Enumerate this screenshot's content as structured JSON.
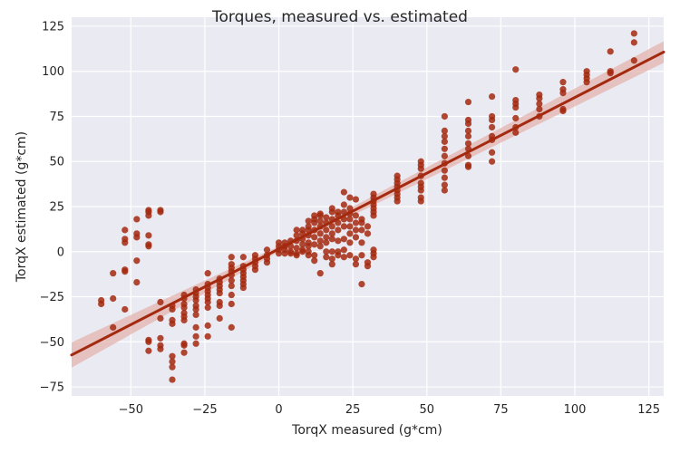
{
  "chart_data": {
    "type": "scatter",
    "title": "Torques, measured vs. estimated",
    "xlabel": "TorqX measured (g*cm)",
    "ylabel": "TorqX estimated (g*cm)",
    "xlim": [
      -70,
      130
    ],
    "ylim": [
      -80,
      130
    ],
    "x_ticks": [
      -50,
      -25,
      0,
      25,
      50,
      75,
      100,
      125
    ],
    "y_ticks": [
      -75,
      -50,
      -25,
      0,
      25,
      50,
      75,
      100,
      125
    ],
    "grid": true,
    "point_color": "#a3290f",
    "line_color": "#a3290f",
    "band_color": "#e3b4ad",
    "background": "#eaeaf2",
    "regression": {
      "slope": 0.84,
      "intercept": 1.5,
      "band": [
        [
          -70,
          7
        ],
        [
          0,
          1.5
        ],
        [
          130,
          6
        ]
      ]
    },
    "points": [
      [
        -60,
        -27
      ],
      [
        -60,
        -29
      ],
      [
        -56,
        -12
      ],
      [
        -56,
        -26
      ],
      [
        -56,
        -42
      ],
      [
        -52,
        12
      ],
      [
        -52,
        7
      ],
      [
        -52,
        5
      ],
      [
        -52,
        -10
      ],
      [
        -52,
        -11
      ],
      [
        -52,
        -32
      ],
      [
        -48,
        18
      ],
      [
        -48,
        10
      ],
      [
        -48,
        8
      ],
      [
        -48,
        -5
      ],
      [
        -48,
        -17
      ],
      [
        -44,
        23
      ],
      [
        -44,
        22
      ],
      [
        -44,
        20
      ],
      [
        -44,
        9
      ],
      [
        -44,
        4
      ],
      [
        -44,
        3
      ],
      [
        -44,
        -49
      ],
      [
        -44,
        -50
      ],
      [
        -44,
        -55
      ],
      [
        -40,
        23
      ],
      [
        -40,
        22
      ],
      [
        -40,
        -28
      ],
      [
        -40,
        -37
      ],
      [
        -40,
        -48
      ],
      [
        -40,
        -52
      ],
      [
        -40,
        -54
      ],
      [
        -36,
        -30
      ],
      [
        -36,
        -32
      ],
      [
        -36,
        -38
      ],
      [
        -36,
        -40
      ],
      [
        -36,
        -58
      ],
      [
        -36,
        -61
      ],
      [
        -36,
        -64
      ],
      [
        -36,
        -71
      ],
      [
        -32,
        -24
      ],
      [
        -32,
        -26
      ],
      [
        -32,
        -29
      ],
      [
        -32,
        -31
      ],
      [
        -32,
        -34
      ],
      [
        -32,
        -36
      ],
      [
        -32,
        -38
      ],
      [
        -32,
        -51
      ],
      [
        -32,
        -52
      ],
      [
        -32,
        -56
      ],
      [
        -28,
        -21
      ],
      [
        -28,
        -23
      ],
      [
        -28,
        -25
      ],
      [
        -28,
        -27
      ],
      [
        -28,
        -30
      ],
      [
        -28,
        -32
      ],
      [
        -28,
        -35
      ],
      [
        -28,
        -42
      ],
      [
        -28,
        -47
      ],
      [
        -28,
        -51
      ],
      [
        -24,
        -12
      ],
      [
        -24,
        -18
      ],
      [
        -24,
        -20
      ],
      [
        -24,
        -22
      ],
      [
        -24,
        -24
      ],
      [
        -24,
        -26
      ],
      [
        -24,
        -28
      ],
      [
        -24,
        -31
      ],
      [
        -24,
        -41
      ],
      [
        -24,
        -47
      ],
      [
        -20,
        -15
      ],
      [
        -20,
        -17
      ],
      [
        -20,
        -19
      ],
      [
        -20,
        -21
      ],
      [
        -20,
        -23
      ],
      [
        -20,
        -28
      ],
      [
        -20,
        -30
      ],
      [
        -20,
        -37
      ],
      [
        -16,
        -3
      ],
      [
        -16,
        -7
      ],
      [
        -16,
        -9
      ],
      [
        -16,
        -11
      ],
      [
        -16,
        -13
      ],
      [
        -16,
        -16
      ],
      [
        -16,
        -19
      ],
      [
        -16,
        -24
      ],
      [
        -16,
        -29
      ],
      [
        -16,
        -42
      ],
      [
        -12,
        -3
      ],
      [
        -12,
        -8
      ],
      [
        -12,
        -10
      ],
      [
        -12,
        -12
      ],
      [
        -12,
        -14
      ],
      [
        -12,
        -16
      ],
      [
        -12,
        -18
      ],
      [
        -12,
        -20
      ],
      [
        -8,
        -2
      ],
      [
        -8,
        -4
      ],
      [
        -8,
        -6
      ],
      [
        -8,
        -8
      ],
      [
        -8,
        -10
      ],
      [
        -4,
        1
      ],
      [
        -4,
        -2
      ],
      [
        -4,
        -4
      ],
      [
        -4,
        -6
      ],
      [
        0,
        -1
      ],
      [
        0,
        1
      ],
      [
        0,
        3
      ],
      [
        0,
        5
      ],
      [
        2,
        1
      ],
      [
        2,
        3
      ],
      [
        2,
        5
      ],
      [
        2,
        -1
      ],
      [
        4,
        3
      ],
      [
        4,
        6
      ],
      [
        4,
        0
      ],
      [
        4,
        -1
      ],
      [
        6,
        6
      ],
      [
        6,
        2
      ],
      [
        6,
        -1
      ],
      [
        6,
        9
      ],
      [
        6,
        12
      ],
      [
        6,
        -2
      ],
      [
        8,
        4
      ],
      [
        8,
        7
      ],
      [
        8,
        10
      ],
      [
        8,
        1
      ],
      [
        8,
        0
      ],
      [
        8,
        12
      ],
      [
        10,
        5
      ],
      [
        10,
        9
      ],
      [
        10,
        12
      ],
      [
        10,
        14
      ],
      [
        10,
        0
      ],
      [
        10,
        -2
      ],
      [
        10,
        17
      ],
      [
        10,
        3
      ],
      [
        12,
        4
      ],
      [
        12,
        8
      ],
      [
        12,
        12
      ],
      [
        12,
        16
      ],
      [
        12,
        18
      ],
      [
        12,
        -2
      ],
      [
        12,
        -5
      ],
      [
        12,
        20
      ],
      [
        14,
        6
      ],
      [
        14,
        10
      ],
      [
        14,
        14
      ],
      [
        14,
        17
      ],
      [
        14,
        20
      ],
      [
        14,
        21
      ],
      [
        14,
        3
      ],
      [
        14,
        -12
      ],
      [
        16,
        8
      ],
      [
        16,
        12
      ],
      [
        16,
        16
      ],
      [
        16,
        19
      ],
      [
        16,
        0
      ],
      [
        16,
        5
      ],
      [
        16,
        -3
      ],
      [
        18,
        10
      ],
      [
        18,
        14
      ],
      [
        18,
        18
      ],
      [
        18,
        22
      ],
      [
        18,
        24
      ],
      [
        18,
        7
      ],
      [
        18,
        0
      ],
      [
        18,
        -4
      ],
      [
        18,
        -7
      ],
      [
        20,
        12
      ],
      [
        20,
        16
      ],
      [
        20,
        20
      ],
      [
        20,
        22
      ],
      [
        20,
        6
      ],
      [
        20,
        0
      ],
      [
        20,
        -2
      ],
      [
        22,
        14
      ],
      [
        22,
        18
      ],
      [
        22,
        22
      ],
      [
        22,
        26
      ],
      [
        22,
        33
      ],
      [
        22,
        7
      ],
      [
        22,
        1
      ],
      [
        22,
        -3
      ],
      [
        24,
        14
      ],
      [
        24,
        18
      ],
      [
        24,
        21
      ],
      [
        24,
        24
      ],
      [
        24,
        30
      ],
      [
        24,
        10
      ],
      [
        24,
        5
      ],
      [
        24,
        -2
      ],
      [
        26,
        12
      ],
      [
        26,
        16
      ],
      [
        26,
        20
      ],
      [
        26,
        29
      ],
      [
        26,
        8
      ],
      [
        26,
        -4
      ],
      [
        26,
        -7
      ],
      [
        28,
        12
      ],
      [
        28,
        16
      ],
      [
        28,
        18
      ],
      [
        28,
        5
      ],
      [
        28,
        -2
      ],
      [
        28,
        -18
      ],
      [
        30,
        10
      ],
      [
        30,
        14
      ],
      [
        30,
        -6
      ],
      [
        30,
        -8
      ],
      [
        32,
        32
      ],
      [
        32,
        30
      ],
      [
        32,
        28
      ],
      [
        32,
        26
      ],
      [
        32,
        24
      ],
      [
        32,
        22
      ],
      [
        32,
        20
      ],
      [
        32,
        1
      ],
      [
        32,
        -1
      ],
      [
        32,
        -3
      ],
      [
        40,
        42
      ],
      [
        40,
        40
      ],
      [
        40,
        38
      ],
      [
        40,
        36
      ],
      [
        40,
        34
      ],
      [
        40,
        32
      ],
      [
        40,
        30
      ],
      [
        40,
        28
      ],
      [
        48,
        50
      ],
      [
        48,
        48
      ],
      [
        48,
        46
      ],
      [
        48,
        42
      ],
      [
        48,
        38
      ],
      [
        48,
        36
      ],
      [
        48,
        34
      ],
      [
        48,
        30
      ],
      [
        48,
        28
      ],
      [
        56,
        75
      ],
      [
        56,
        67
      ],
      [
        56,
        64
      ],
      [
        56,
        61
      ],
      [
        56,
        57
      ],
      [
        56,
        53
      ],
      [
        56,
        49
      ],
      [
        56,
        45
      ],
      [
        56,
        41
      ],
      [
        56,
        37
      ],
      [
        56,
        34
      ],
      [
        64,
        83
      ],
      [
        64,
        73
      ],
      [
        64,
        71
      ],
      [
        64,
        67
      ],
      [
        64,
        64
      ],
      [
        64,
        60
      ],
      [
        64,
        57
      ],
      [
        64,
        53
      ],
      [
        64,
        48
      ],
      [
        64,
        47
      ],
      [
        72,
        86
      ],
      [
        72,
        75
      ],
      [
        72,
        73
      ],
      [
        72,
        69
      ],
      [
        72,
        64
      ],
      [
        72,
        62
      ],
      [
        72,
        55
      ],
      [
        72,
        50
      ],
      [
        80,
        101
      ],
      [
        80,
        84
      ],
      [
        80,
        82
      ],
      [
        80,
        80
      ],
      [
        80,
        74
      ],
      [
        80,
        69
      ],
      [
        80,
        66
      ],
      [
        88,
        87
      ],
      [
        88,
        85
      ],
      [
        88,
        82
      ],
      [
        88,
        79
      ],
      [
        88,
        75
      ],
      [
        96,
        94
      ],
      [
        96,
        90
      ],
      [
        96,
        88
      ],
      [
        96,
        79
      ],
      [
        96,
        78
      ],
      [
        104,
        100
      ],
      [
        104,
        98
      ],
      [
        104,
        96
      ],
      [
        104,
        94
      ],
      [
        112,
        111
      ],
      [
        112,
        100
      ],
      [
        112,
        99
      ],
      [
        120,
        121
      ],
      [
        120,
        116
      ],
      [
        120,
        106
      ]
    ]
  }
}
